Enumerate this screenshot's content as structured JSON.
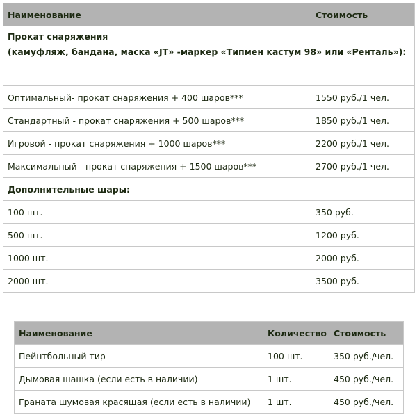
{
  "table1": {
    "headers": {
      "name": "Наименование",
      "price": "Стоимость"
    },
    "section1": {
      "title": "Прокат снаряжения",
      "subtitle": "(камуфляж, бандана, маска «JT» -маркер «Типмен кастум 98» или «Ренталь»):"
    },
    "packages": [
      {
        "name": "Оптимальный- прокат снаряжения + 400 шаров***",
        "price": "1550 руб./1 чел."
      },
      {
        "name": "Стандартный  - прокат снаряжения + 500 шаров***",
        "price": "1850 руб./1 чел."
      },
      {
        "name": "Игровой - прокат снаряжения + 1000 шаров***",
        "price": "2200 руб./1 чел."
      },
      {
        "name": "Максимальный - прокат снаряжения + 1500 шаров***",
        "price": "2700 руб./1 чел."
      }
    ],
    "section2": {
      "title": "Дополнительные шары:"
    },
    "balls": [
      {
        "name": "100 шт.",
        "price": "350 руб."
      },
      {
        "name": "500 шт.",
        "price": "1200 руб."
      },
      {
        "name": "1000 шт.",
        "price": "2000 руб."
      },
      {
        "name": "2000 шт.",
        "price": "3500 руб."
      }
    ]
  },
  "table2": {
    "headers": {
      "name": "Наименование",
      "qty": "Количество",
      "price": "Стоимость"
    },
    "rows": [
      {
        "name": "Пейнтбольный тир",
        "qty": "100 шт.",
        "price": "350 руб./чел."
      },
      {
        "name": "Дымовая шашка (если есть в наличии)",
        "qty": "1 шт.",
        "price": "450 руб./чел."
      },
      {
        "name": "Граната шумовая красящая (если есть в наличии)",
        "qty": "1 шт.",
        "price": "450 руб./чел."
      }
    ]
  }
}
